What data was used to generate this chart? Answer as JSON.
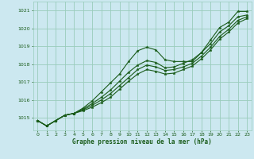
{
  "xlabel": "Graphe pression niveau de la mer (hPa)",
  "bg_color": "#cce8f0",
  "grid_color": "#99ccbb",
  "line_color": "#1a5c1a",
  "xlim": [
    -0.5,
    23.5
  ],
  "ylim": [
    1014.3,
    1021.5
  ],
  "yticks": [
    1015,
    1016,
    1017,
    1018,
    1019,
    1020,
    1021
  ],
  "xticks": [
    0,
    1,
    2,
    3,
    4,
    5,
    6,
    7,
    8,
    9,
    10,
    11,
    12,
    13,
    14,
    15,
    16,
    17,
    18,
    19,
    20,
    21,
    22,
    23
  ],
  "series": [
    [
      1014.85,
      1014.55,
      1014.85,
      1015.15,
      1015.25,
      1015.55,
      1015.95,
      1016.45,
      1016.95,
      1017.45,
      1018.15,
      1018.75,
      1018.95,
      1018.8,
      1018.25,
      1018.15,
      1018.15,
      1018.15,
      1018.65,
      1019.35,
      1020.05,
      1020.35,
      1020.95,
      1020.95
    ],
    [
      1014.85,
      1014.55,
      1014.85,
      1015.15,
      1015.25,
      1015.5,
      1015.8,
      1016.15,
      1016.55,
      1017.05,
      1017.55,
      1017.95,
      1018.2,
      1018.1,
      1017.8,
      1017.85,
      1018.05,
      1018.25,
      1018.65,
      1019.15,
      1019.8,
      1020.15,
      1020.65,
      1020.75
    ],
    [
      1014.85,
      1014.55,
      1014.85,
      1015.15,
      1015.25,
      1015.45,
      1015.7,
      1016.0,
      1016.35,
      1016.8,
      1017.25,
      1017.7,
      1017.95,
      1017.85,
      1017.65,
      1017.7,
      1017.85,
      1018.05,
      1018.45,
      1018.95,
      1019.55,
      1019.95,
      1020.45,
      1020.65
    ],
    [
      1014.85,
      1014.55,
      1014.85,
      1015.15,
      1015.25,
      1015.4,
      1015.6,
      1015.85,
      1016.15,
      1016.6,
      1017.05,
      1017.45,
      1017.7,
      1017.6,
      1017.45,
      1017.5,
      1017.7,
      1017.9,
      1018.3,
      1018.8,
      1019.4,
      1019.8,
      1020.3,
      1020.55
    ]
  ]
}
